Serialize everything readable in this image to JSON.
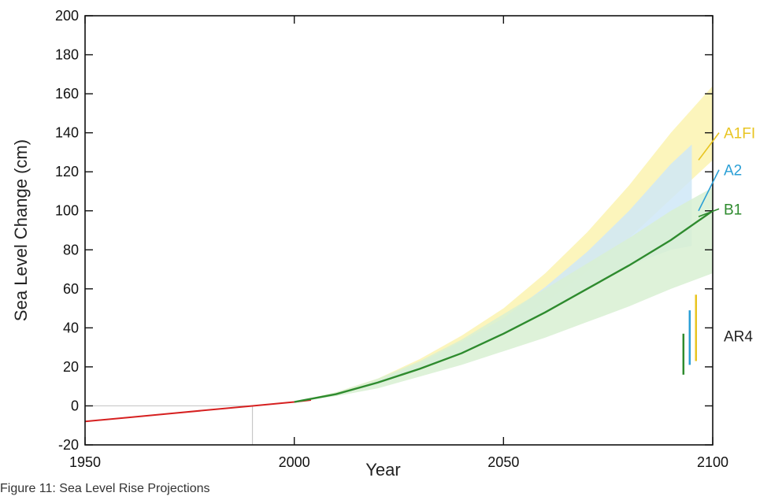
{
  "caption": "Figure 11: Sea Level Rise Projections",
  "chart_data": {
    "type": "line",
    "title": "",
    "xlabel": "Year",
    "ylabel": "Sea Level Change (cm)",
    "xlim": [
      1950,
      2100
    ],
    "ylim": [
      -20,
      200
    ],
    "xticks": [
      1950,
      2000,
      2050,
      2100
    ],
    "yticks": [
      -20,
      0,
      20,
      40,
      60,
      80,
      100,
      120,
      140,
      160,
      180,
      200
    ],
    "grid": false,
    "reference_year": 1990,
    "observed": {
      "x": [
        1950,
        1960,
        1970,
        1980,
        1990,
        2000,
        2004
      ],
      "y": [
        -8,
        -6,
        -4,
        -2,
        0,
        2,
        3
      ]
    },
    "series": [
      {
        "name": "A1FI",
        "color": "#e8c420",
        "band_color": "#fbf3b0",
        "x": [
          2000,
          2010,
          2020,
          2030,
          2040,
          2050,
          2060,
          2070,
          2080,
          2090,
          2100
        ],
        "lower": [
          2,
          6,
          12,
          20,
          29,
          40,
          53,
          69,
          86,
          106,
          126
        ],
        "upper": [
          2,
          7,
          14,
          24,
          36,
          50,
          68,
          89,
          113,
          140,
          164
        ]
      },
      {
        "name": "A2",
        "color": "#2a9fd6",
        "band_color": "#cfe8f7",
        "x": [
          2000,
          2010,
          2020,
          2030,
          2040,
          2050,
          2060,
          2070,
          2080,
          2090,
          2095
        ],
        "lower": [
          2,
          6,
          11,
          19,
          27,
          37,
          48,
          60,
          72,
          80,
          82
        ],
        "upper": [
          2,
          6,
          13,
          22,
          33,
          45,
          61,
          79,
          100,
          124,
          134
        ]
      },
      {
        "name": "B1",
        "color": "#2e8b2e",
        "band_color": "#d8f0d2",
        "x": [
          2000,
          2010,
          2020,
          2030,
          2040,
          2050,
          2060,
          2070,
          2080,
          2090,
          2100
        ],
        "y": [
          2,
          6,
          12,
          19,
          27,
          37,
          48,
          60,
          72,
          85,
          100
        ],
        "lower": [
          2,
          5,
          9,
          15,
          21,
          28,
          35,
          43,
          51,
          60,
          68
        ],
        "upper": [
          2,
          7,
          14,
          23,
          34,
          47,
          60,
          73,
          86,
          100,
          112
        ]
      }
    ],
    "ar4": {
      "label": "AR4",
      "ranges": [
        {
          "name": "B1",
          "color": "#2e8b2e",
          "x": 2093,
          "low": 16,
          "high": 37
        },
        {
          "name": "A2",
          "color": "#2a9fd6",
          "x": 2094.5,
          "low": 21,
          "high": 49
        },
        {
          "name": "A1FI",
          "color": "#e8c420",
          "x": 2096,
          "low": 23,
          "high": 57
        }
      ]
    },
    "annotations": [
      {
        "text": "A1FI",
        "color": "#e8c420",
        "y": 140
      },
      {
        "text": "A2",
        "color": "#2a9fd6",
        "y": 121
      },
      {
        "text": "B1",
        "color": "#2e8b2e",
        "y": 101
      },
      {
        "text": "AR4",
        "color": "#222222",
        "y": 36
      }
    ]
  }
}
